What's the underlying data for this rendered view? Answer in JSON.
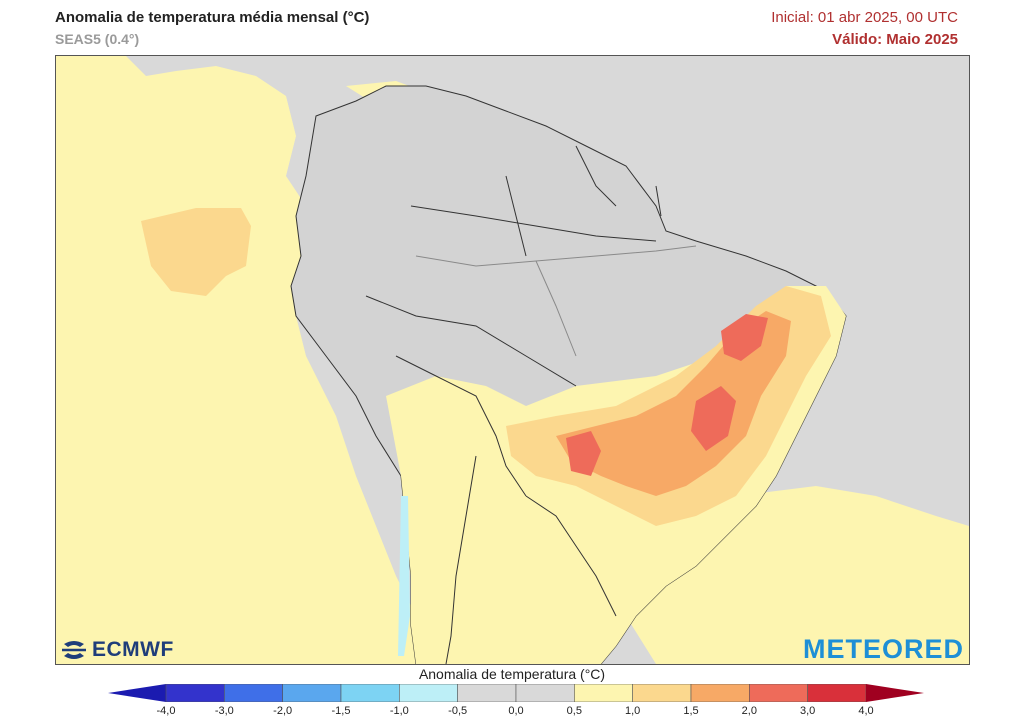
{
  "header": {
    "title": "Anomalia de temperatura média mensal (°C)",
    "subtitle": "SEAS5 (0.4°)",
    "initial": "Inicial: 01 abr 2025, 00 UTC",
    "valid": "Válido: Maio 2025"
  },
  "logos": {
    "left": "ECMWF",
    "right": "METEORED"
  },
  "colorbar": {
    "label": "Anomalia de temperatura (°C)",
    "ticks": [
      "-4,0",
      "-3,0",
      "-2,0",
      "-1,5",
      "-1,0",
      "-0,5",
      "0,0",
      "0,5",
      "1,0",
      "1,5",
      "2,0",
      "3,0",
      "4,0"
    ],
    "colors": [
      "#3333cc",
      "#3f6fe8",
      "#5aa7ee",
      "#7dd3f3",
      "#bdeff7",
      "#d9d9d9",
      "#d9d9d9",
      "#fdf5b0",
      "#fbd88e",
      "#f7a966",
      "#ee6b5a",
      "#d9303a"
    ],
    "under_color": "#1b1bb0",
    "over_color": "#a00020"
  },
  "map_colors": {
    "ocean_neutral": "#d8d8d8",
    "land": "#d3d3d3",
    "anomaly_05_10": "#fdf5b0",
    "anomaly_10_15": "#fbd88e",
    "anomaly_15_20": "#f7a966",
    "anomaly_20_30": "#ee6b5a",
    "anomaly_neg": "#bdeff7"
  }
}
